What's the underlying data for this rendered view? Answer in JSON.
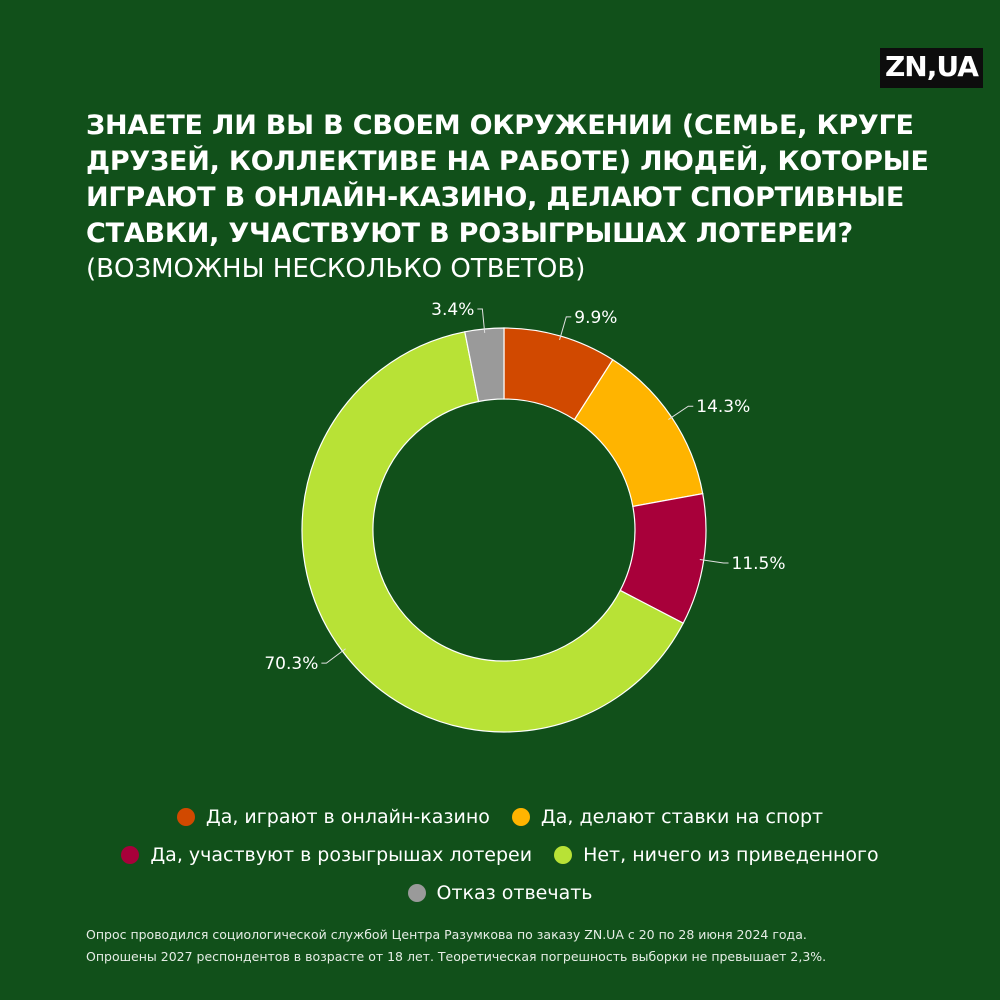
{
  "logo": "ZN,UA",
  "title": "ЗНАЕТЕ ЛИ ВЫ В СВОЕМ ОКРУЖЕНИИ (СЕМЬЕ, КРУГЕ ДРУЗЕЙ, КОЛЛЕКТИВЕ НА РАБОТЕ) ЛЮДЕЙ, КОТОРЫЕ ИГРАЮТ В ОНЛАЙН-КАЗИНО, ДЕЛАЮТ СПОРТИВНЫЕ СТАВКИ, УЧАСТВУЮТ В РОЗЫГРЫШАХ ЛОТЕРЕИ?",
  "subtitle": "(ВОЗМОЖНЫ НЕСКОЛЬКО ОТВЕТОВ)",
  "chart_data": {
    "type": "pie",
    "style": "donut",
    "categories": [
      "Да, играют в онлайн-казино",
      "Да, делают ставки на спорт",
      "Да, участвуют в розыгрышах лотереи",
      "Нет, ничего из приведенного",
      "Отказ отвечать"
    ],
    "values": [
      9.9,
      14.3,
      11.5,
      70.3,
      3.4
    ],
    "value_labels": [
      "9.9%",
      "14.3%",
      "11.5%",
      "70.3%",
      "3.4%"
    ],
    "colors": [
      "#d14900",
      "#ffb400",
      "#a8003a",
      "#b8e236",
      "#9a9a9a"
    ],
    "legend_position": "bottom"
  },
  "footnote": {
    "line1": "Опрос проводился социологической службой Центра Разумкова по заказу ZN.UA с 20 по 28 июня 2024 года.",
    "line2": "Опрошены 2027 респондентов в возрасте от 18 лет. Теоретическая погрешность выборки не превышает 2,3%."
  }
}
